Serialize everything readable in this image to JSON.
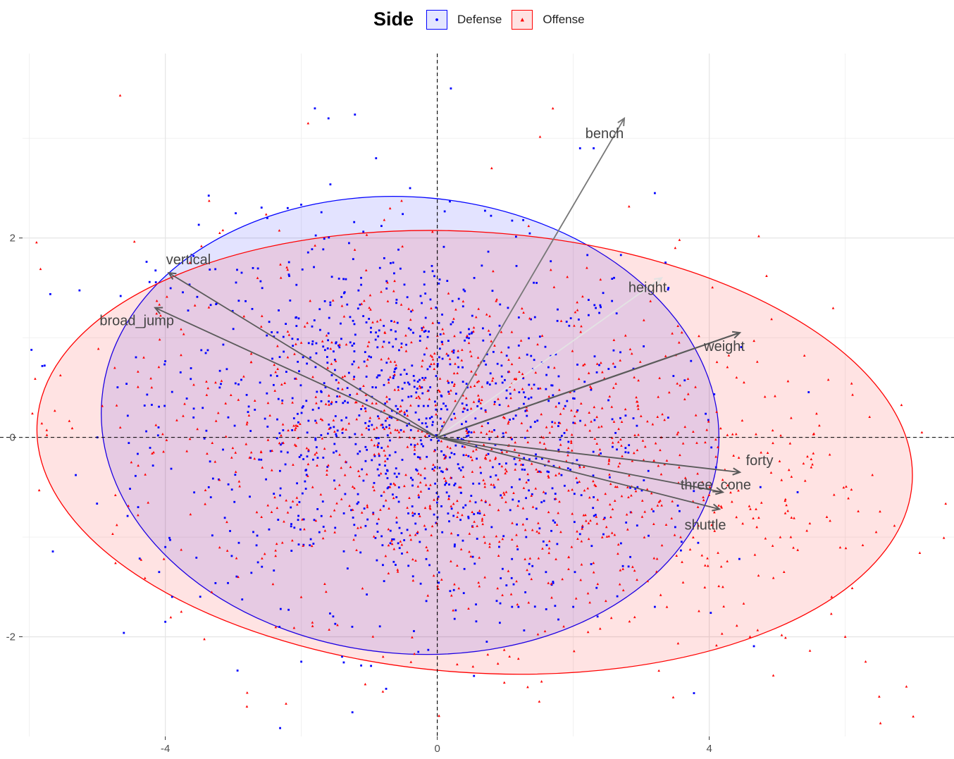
{
  "legend": {
    "title": "Side",
    "items": [
      {
        "label": "Defense",
        "color": "#0000ff",
        "fill": "#e4e6ff",
        "symbol": "circle"
      },
      {
        "label": "Offense",
        "color": "#ff0000",
        "fill": "#ffe2e2",
        "symbol": "triangle"
      }
    ]
  },
  "chart_data": {
    "type": "scatter",
    "title": "",
    "xlabel": "",
    "ylabel": "",
    "xlim": [
      -6.1,
      7.6
    ],
    "ylim": [
      -3.0,
      3.85
    ],
    "x_ticks": [
      -4,
      0,
      4
    ],
    "y_ticks": [
      -2,
      0,
      2
    ],
    "grid": true,
    "reference_lines": {
      "x": 0,
      "y": 0,
      "style": "dashed"
    },
    "legend_position": "top",
    "series": [
      {
        "name": "Defense",
        "color": "#0000ff",
        "marker": "circle",
        "n_points_approx": 1100,
        "sample_points": [
          [
            0.2,
            3.5
          ],
          [
            -1.8,
            3.3
          ],
          [
            -1.6,
            3.2
          ],
          [
            2.1,
            2.9
          ],
          [
            2.3,
            2.9
          ],
          [
            3.2,
            2.45
          ],
          [
            -0.9,
            2.8
          ],
          [
            -0.4,
            2.5
          ],
          [
            -2.2,
            2.3
          ],
          [
            -2.5,
            2.2
          ],
          [
            2.6,
            1.6
          ],
          [
            3.4,
            1.5
          ],
          [
            -5.0,
            0.0
          ],
          [
            -4.1,
            0.1
          ],
          [
            -3.2,
            0.5
          ],
          [
            -4.4,
            -0.7
          ],
          [
            -4.0,
            -1.1
          ],
          [
            -3.9,
            -1.6
          ],
          [
            -4.0,
            -1.85
          ],
          [
            -2.0,
            -2.25
          ],
          [
            -1.4,
            -2.2
          ],
          [
            1.1,
            -1.7
          ],
          [
            2.0,
            -1.7
          ],
          [
            3.2,
            -1.7
          ],
          [
            3.5,
            -0.9
          ],
          [
            4.1,
            -0.3
          ],
          [
            5.3,
            -0.55
          ],
          [
            2.3,
            -0.6
          ],
          [
            0.8,
            -0.9
          ],
          [
            -0.6,
            -0.6
          ]
        ]
      },
      {
        "name": "Offense",
        "color": "#ff0000",
        "marker": "triangle",
        "n_points_approx": 1200,
        "sample_points": [
          [
            1.7,
            3.3
          ],
          [
            0.8,
            2.7
          ],
          [
            -1.9,
            3.15
          ],
          [
            -3.2,
            2.05
          ],
          [
            -2.3,
            1.6
          ],
          [
            -4.5,
            -0.25
          ],
          [
            -4.2,
            0.5
          ],
          [
            4.4,
            -0.8
          ],
          [
            5.2,
            -1.0
          ],
          [
            5.5,
            -0.3
          ],
          [
            5.8,
            -1.6
          ],
          [
            6.0,
            -2.0
          ],
          [
            6.3,
            -2.25
          ],
          [
            6.9,
            -2.5
          ],
          [
            7.0,
            -2.8
          ],
          [
            6.5,
            -2.6
          ],
          [
            -0.8,
            -2.55
          ],
          [
            1.5,
            -2.65
          ],
          [
            -2.8,
            -2.7
          ],
          [
            3.6,
            -1.25
          ],
          [
            4.6,
            -2.0
          ],
          [
            4.2,
            -1.5
          ],
          [
            3.9,
            -0.45
          ],
          [
            2.8,
            -0.5
          ],
          [
            4.7,
            -0.9
          ],
          [
            5.1,
            -1.35
          ],
          [
            2.2,
            1.7
          ],
          [
            3.5,
            1.9
          ],
          [
            0.6,
            0.8
          ],
          [
            -1.0,
            1.3
          ]
        ]
      }
    ],
    "ellipses": [
      {
        "group": "Defense",
        "center": [
          -0.4,
          0.12
        ],
        "rx": 4.55,
        "ry": 2.29,
        "angle_deg": -5
      },
      {
        "group": "Offense",
        "center": [
          0.55,
          -0.15
        ],
        "rx": 6.45,
        "ry": 2.21,
        "angle_deg": -4
      }
    ],
    "vectors": [
      {
        "label": "bench",
        "x": 2.75,
        "y": 3.2
      },
      {
        "label": "vertical",
        "x": -3.95,
        "y": 1.65
      },
      {
        "label": "broad_jump",
        "x": -4.15,
        "y": 1.3
      },
      {
        "label": "height",
        "x": 3.3,
        "y": 1.6
      },
      {
        "label": "weight",
        "x": 4.45,
        "y": 1.05
      },
      {
        "label": "forty",
        "x": 4.45,
        "y": -0.35
      },
      {
        "label": "three_cone",
        "x": 4.2,
        "y": -0.55
      },
      {
        "label": "shuttle",
        "x": 4.15,
        "y": -0.72
      }
    ]
  }
}
